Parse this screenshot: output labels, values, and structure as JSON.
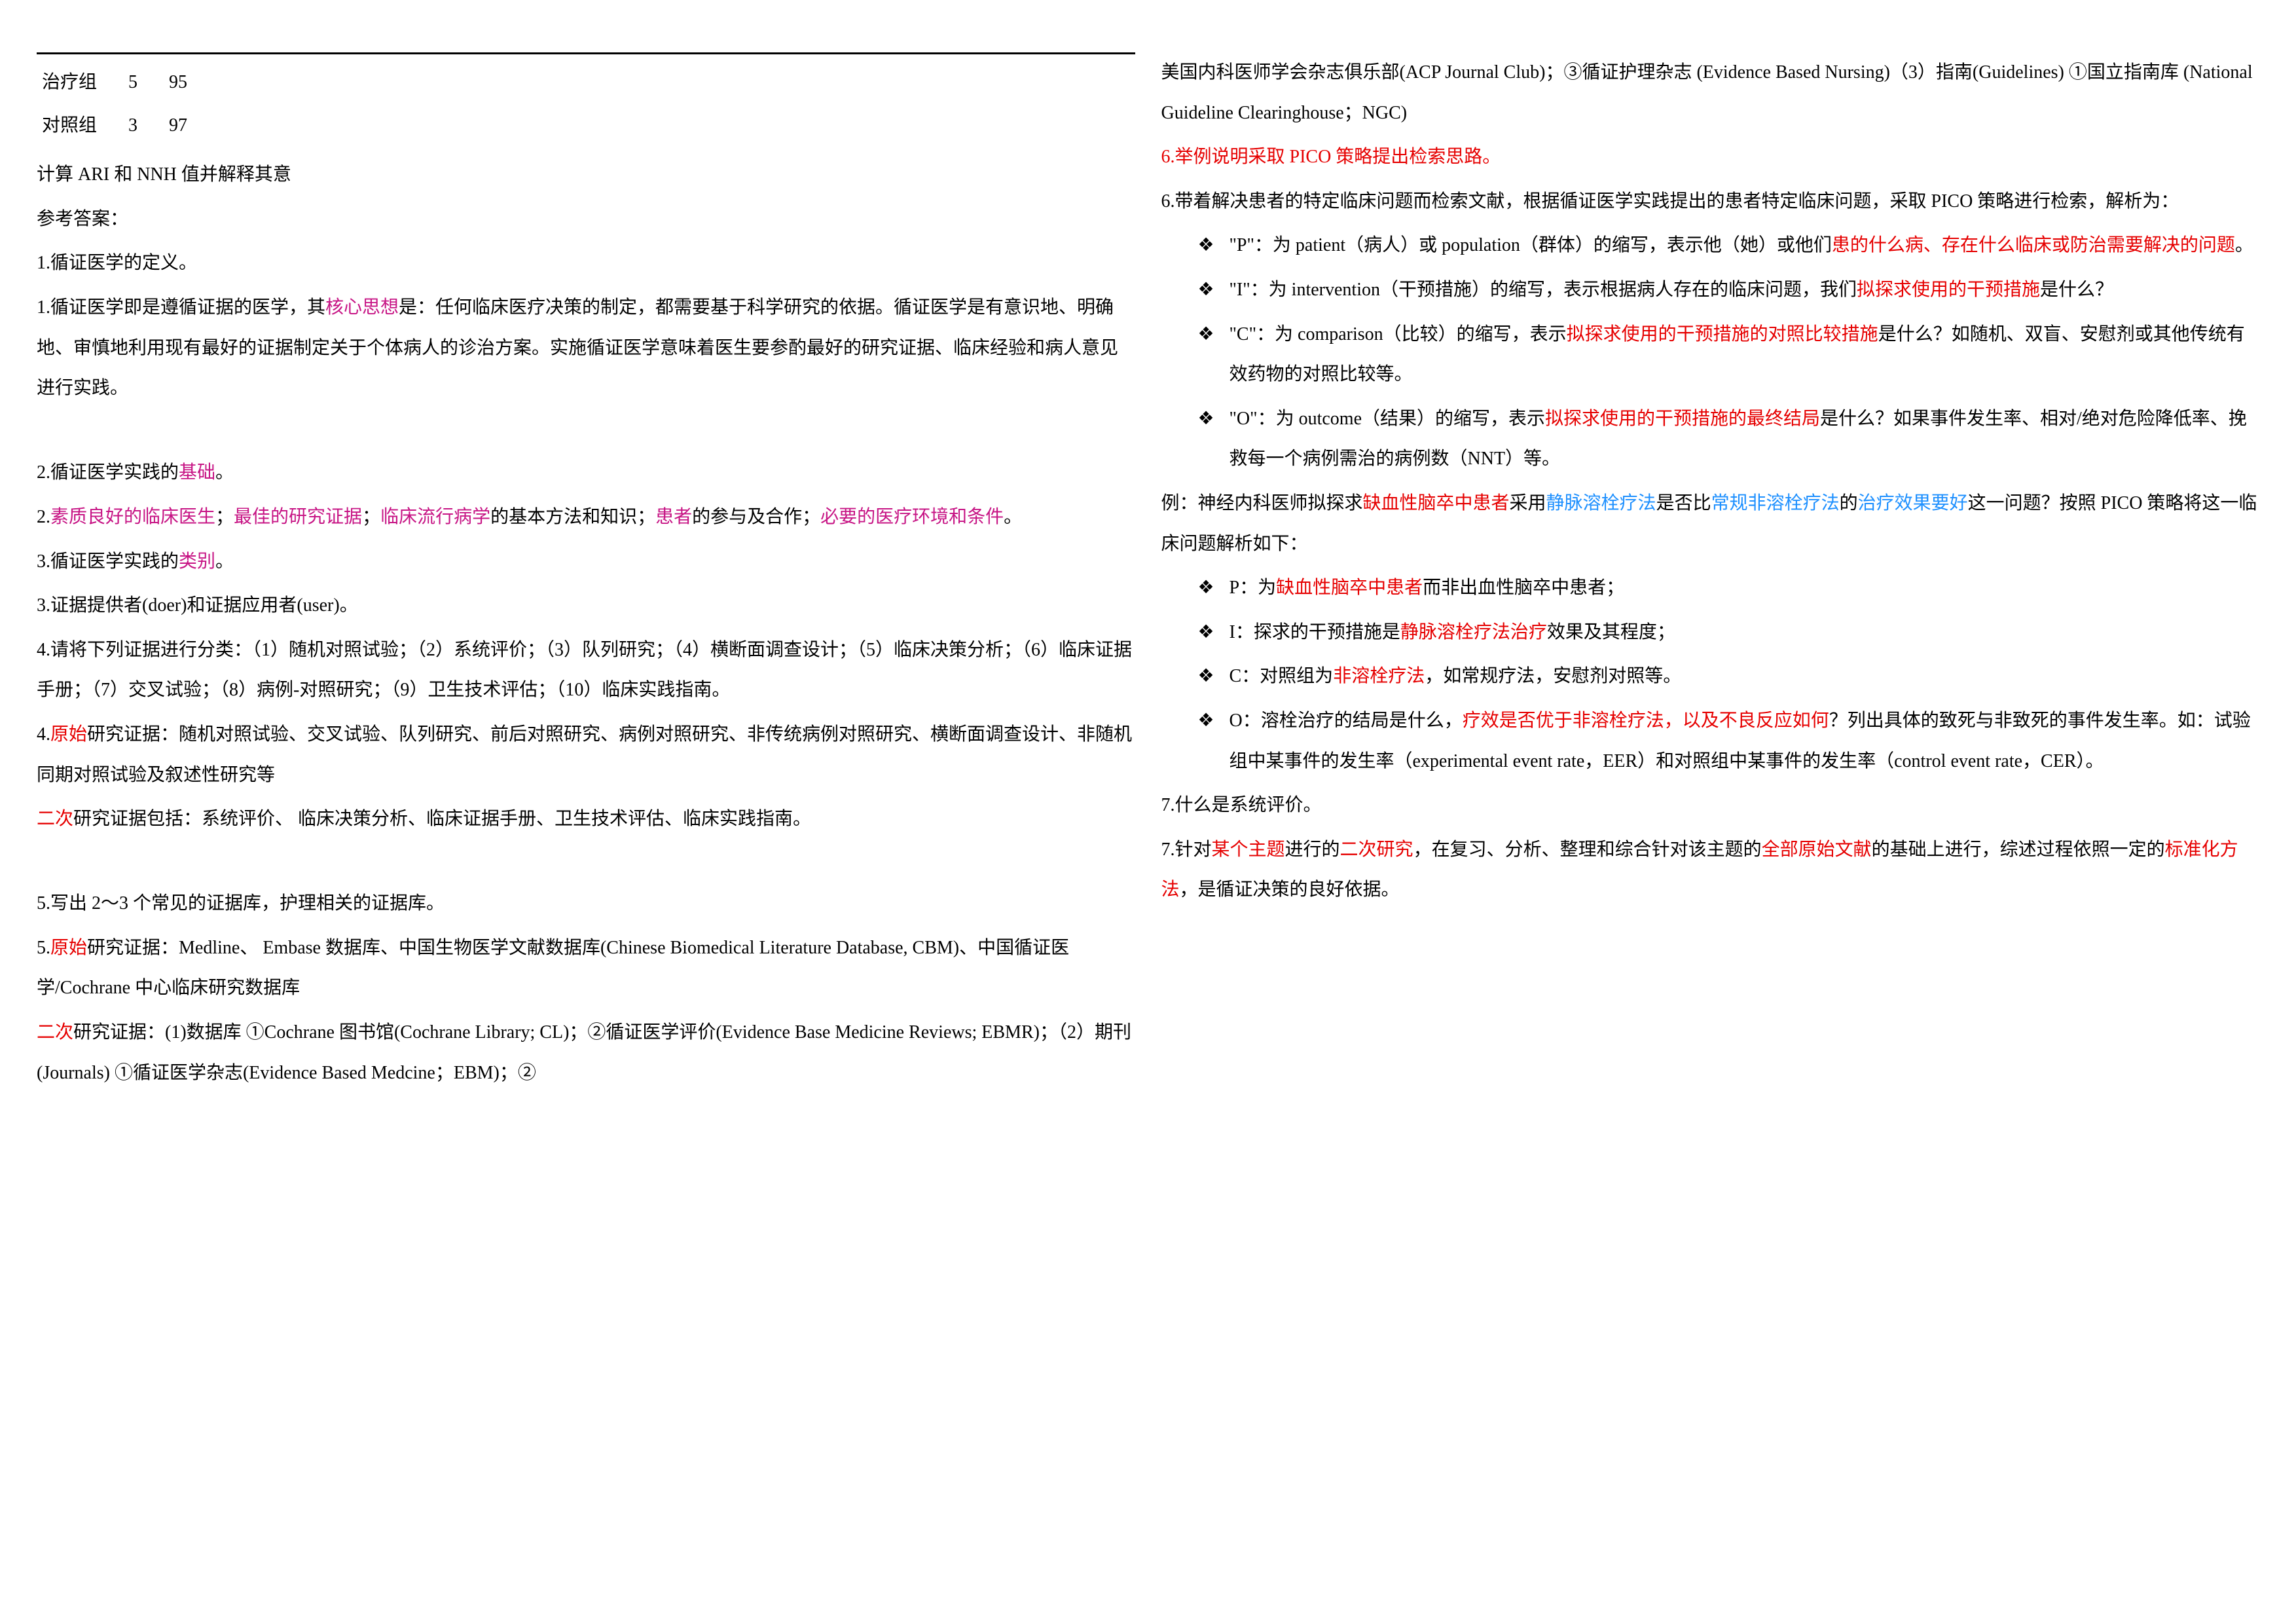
{
  "colors": {
    "text": "#000000",
    "pink": "#c71585",
    "red": "#e60000",
    "blue": "#1e90ff",
    "background": "#ffffff",
    "rule": "#000000"
  },
  "typography": {
    "body_fontsize_pt": 21,
    "line_height": 2.2,
    "font_family": "SimSun / 宋体 serif"
  },
  "table": {
    "row1": {
      "label": "治疗组",
      "a": "5",
      "b": "95"
    },
    "row2": {
      "label": "对照组",
      "a": "3",
      "b": "97"
    }
  },
  "left": {
    "p_calc": "  计算 ARI 和 NNH 值并解释其意",
    "p_ref": "参考答案：",
    "p1h": "1.循证医学的定义。",
    "p1a": "1.循证医学即是遵循证据的医学，其",
    "p1b": "核心思想",
    "p1c": "是：任何临床医疗决策的制定，都需要基于科学研究的依据。循证医学是有意识地、明确地、审慎地利用现有最好的证据制定关于个体病人的诊治方案。实施循证医学意味着医生要参酌最好的研究证据、临床经验和病人意见进行实践。",
    "p2h_a": "2.循证医学实践的",
    "p2h_b": "基础",
    "p2h_c": "。",
    "p2a": "2.",
    "p2b": "素质良好的临床医生",
    "p2c": "；",
    "p2d": "最佳的研究证据",
    "p2e": "；",
    "p2f": "临床流行病学",
    "p2g": "的基本方法和知识；",
    "p2h": "患者",
    "p2i": "的参与及合作；",
    "p2j": "必要的医疗环境和条件",
    "p2k": "。",
    "p3h_a": "3.循证医学实践的",
    "p3h_b": "类别",
    "p3h_c": "。",
    "p3a": "3.证据提供者(doer)和证据应用者(user)。",
    "p4h": "4.请将下列证据进行分类：（1）随机对照试验；（2）系统评价；（3）队列研究；（4）横断面调查设计；（5）临床决策分析；（6）临床证据手册；（7）交叉试验；（8）病例-对照研究；（9）卫生技术评估；（10）临床实践指南。",
    "p4a": "4.",
    "p4b": "原始",
    "p4c": "研究证据：随机对照试验、交叉试验、队列研究、前后对照研究、病例对照研究、非传统病例对照研究、横断面调查设计、非随机同期对照试验及叙述性研究等",
    "p4d": " 二次",
    "p4e": "研究证据包括：系统评价、 临床决策分析、临床证据手册、卫生技术评估、临床实践指南。",
    "p5h": "5.写出 2～3 个常见的证据库，护理相关的证据库。",
    "p5a": "5.",
    "p5b": "原始",
    "p5c": "研究证据：Medline、 Embase 数据库、中国生物医学文献数据库(Chinese Biomedical   Literature Database, CBM)、中国循证医学/Cochrane 中心临床研究数据库",
    "p5d": "二次",
    "p5e": "研究证据：(1)数据库  ①Cochrane 图书馆(Cochrane Library; CL)；②循证医学评价(Evidence Base Medicine Reviews; EBMR)；（2）期刊(Journals)  ①循证医学杂志(Evidence Based Medcine；EBM)；②"
  },
  "right": {
    "p5f": "美国内科医师学会杂志俱乐部(ACP Journal Club)；③循证护理杂志  (Evidence Based Nursing)（3）指南(Guidelines)   ①国立指南库  (National Guideline Clearinghouse；NGC)",
    "p6h": "6.举例说明采取 PICO 策略提出检索思路。",
    "p6a": "6.带着解决患者的特定临床问题而检索文献，根据循证医学实践提出的患者特定临床问题，采取 PICO 策略进行检索，解析为：",
    "b1a": "\"P\"：为 patient（病人）或 population（群体）的缩写，表示他（她）或他们",
    "b1b": "患的什么病、存在什么临床或防治需要解决的问题",
    "b1c": "。",
    "b2a": "\"I\"：为 intervention（干预措施）的缩写，表示根据病人存在的临床问题，我们",
    "b2b": "拟探求使用的干预措施",
    "b2c": "是什么？",
    "b3a": "\"C\"：为 comparison（比较）的缩写，表示",
    "b3b": "拟探求使用的干预措施的对照比较措施",
    "b3c": "是什么？如随机、双盲、安慰剂或其他传统有效药物的对照比较等。",
    "b4a": "\"O\"：为 outcome（结果）的缩写，表示",
    "b4b": "拟探求使用的干预措施的最终结局",
    "b4c": "是什么？如果事件发生率、相对/绝对危险降低率、挽救每一个病例需治的病例数（NNT）等。",
    "ex_a": "例：神经内科医师拟探求",
    "ex_b": "缺血性脑卒中患者",
    "ex_c": "采用",
    "ex_d": "静脉溶栓疗法",
    "ex_e": "是否比",
    "ex_f": "常规非溶栓疗法",
    "ex_g": "的",
    "ex_h": "治疗效果要好",
    "ex_i": "这一问题？按照 PICO 策略将这一临床问题解析如下：",
    "eb1a": "P：为",
    "eb1b": "缺血性脑卒中患者",
    "eb1c": "而非出血性脑卒中患者；",
    "eb2a": "I：探求的干预措施是",
    "eb2b": "静脉溶栓疗法治疗",
    "eb2c": "效果及其程度；",
    "eb3a": "C：对照组为",
    "eb3b": "非溶栓疗法",
    "eb3c": "，如常规疗法，安慰剂对照等。",
    "eb4a": "O：溶栓治疗的结局是什么，",
    "eb4b": "疗效是否优于非溶栓疗法，以及不良反应如何",
    "eb4c": "？列出具体的致死与非致死的事件发生率。如：试验组中某事件的发生率（experimental event rate，EER）和对照组中某事件的发生率（control event rate，CER）。",
    "p7h": "7.什么是系统评价。",
    "p7a": "7.针对",
    "p7b": "某个主题",
    "p7c": "进行的",
    "p7d": "二次研究",
    "p7e": "，在复习、分析、整理和综合针对该主题的",
    "p7f": "全部原始文献",
    "p7g": "的基础上进行，综述过程依照一定的",
    "p7h2": "标准化方法",
    "p7i": "，是循证决策的良好依据。"
  },
  "bullet_glyph": "❖"
}
